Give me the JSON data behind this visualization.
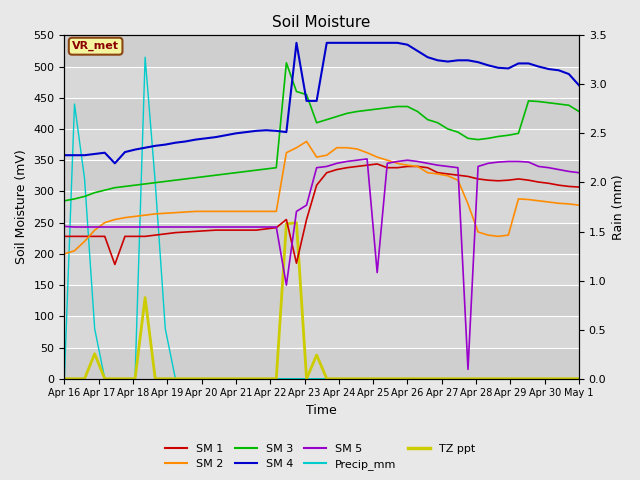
{
  "title": "Soil Moisture",
  "xlabel": "Time",
  "ylabel_left": "Soil Moisture (mV)",
  "ylabel_right": "Rain (mm)",
  "ylim_left": [
    0,
    550
  ],
  "ylim_right": [
    0,
    3.5
  ],
  "background_color": "#e8e8e8",
  "plot_bg_color": "#d8d8d8",
  "annotation_text": "VR_met",
  "annotation_color": "#8b0000",
  "annotation_bg": "#f5f5a0",
  "annotation_border": "#8b4513",
  "x_ticks": [
    "Apr 16",
    "Apr 17",
    "Apr 18",
    "Apr 19",
    "Apr 20",
    "Apr 21",
    "Apr 22",
    "Apr 23",
    "Apr 24",
    "Apr 25",
    "Apr 26",
    "Apr 27",
    "Apr 28",
    "Apr 29",
    "Apr 30",
    "May 1"
  ],
  "colors": {
    "SM1": "#cc0000",
    "SM2": "#ff8c00",
    "SM3": "#00bb00",
    "SM4": "#0000cc",
    "SM5": "#9900cc",
    "Precip_mm": "#00cccc",
    "TZ_ppt": "#cccc00"
  },
  "sm1": [
    228,
    228,
    228,
    228,
    228,
    183,
    228,
    228,
    228,
    230,
    232,
    234,
    235,
    236,
    237,
    238,
    238,
    238,
    238,
    238,
    240,
    242,
    255,
    185,
    255,
    310,
    330,
    335,
    338,
    340,
    342,
    344,
    338,
    338,
    340,
    340,
    338,
    330,
    328,
    326,
    324,
    320,
    318,
    317,
    318,
    320,
    318,
    315,
    313,
    310,
    308,
    307
  ],
  "sm2": [
    200,
    205,
    220,
    238,
    250,
    255,
    258,
    260,
    262,
    264,
    265,
    266,
    267,
    268,
    268,
    268,
    268,
    268,
    268,
    268,
    268,
    268,
    362,
    370,
    380,
    355,
    358,
    370,
    370,
    368,
    362,
    355,
    350,
    345,
    342,
    340,
    330,
    328,
    325,
    318,
    280,
    235,
    230,
    228,
    230,
    288,
    287,
    285,
    283,
    281,
    280,
    278
  ],
  "sm3": [
    285,
    288,
    292,
    298,
    302,
    306,
    308,
    310,
    312,
    314,
    316,
    318,
    320,
    322,
    324,
    326,
    328,
    330,
    332,
    334,
    336,
    338,
    506,
    460,
    455,
    410,
    415,
    420,
    425,
    428,
    430,
    432,
    434,
    436,
    436,
    428,
    415,
    410,
    400,
    395,
    385,
    383,
    385,
    388,
    390,
    393,
    445,
    444,
    442,
    440,
    438,
    428
  ],
  "sm4": [
    358,
    358,
    358,
    360,
    362,
    345,
    363,
    367,
    370,
    373,
    375,
    378,
    380,
    383,
    385,
    387,
    390,
    393,
    395,
    397,
    398,
    397,
    395,
    538,
    445,
    445,
    538,
    538,
    538,
    538,
    538,
    538,
    538,
    538,
    535,
    525,
    515,
    510,
    508,
    510,
    510,
    507,
    502,
    498,
    497,
    505,
    505,
    500,
    496,
    494,
    488,
    470
  ],
  "sm5": [
    244,
    243,
    243,
    243,
    243,
    243,
    243,
    243,
    243,
    243,
    243,
    243,
    243,
    243,
    243,
    243,
    243,
    243,
    243,
    243,
    243,
    243,
    150,
    268,
    278,
    338,
    340,
    345,
    348,
    350,
    352,
    170,
    345,
    348,
    350,
    348,
    345,
    342,
    340,
    338,
    15,
    340,
    345,
    347,
    348,
    348,
    347,
    340,
    338,
    335,
    332,
    330
  ],
  "precip_left": [
    0,
    440,
    320,
    80,
    0,
    0,
    0,
    0,
    515,
    315,
    80,
    0,
    0,
    0,
    0,
    0,
    0,
    0,
    0,
    0,
    0,
    0,
    0,
    0,
    0,
    0,
    0,
    0,
    0,
    0,
    0,
    0,
    0,
    0,
    0,
    0,
    0,
    0,
    0,
    0,
    0,
    0,
    0,
    0,
    0,
    0,
    0,
    0,
    0,
    0,
    0,
    0
  ],
  "tz_ppt_left": [
    0,
    0,
    0,
    40,
    0,
    0,
    0,
    0,
    130,
    0,
    0,
    0,
    0,
    0,
    0,
    0,
    0,
    0,
    0,
    0,
    0,
    0,
    248,
    250,
    0,
    38,
    0,
    0,
    0,
    0,
    0,
    0,
    0,
    0,
    0,
    0,
    0,
    0,
    0,
    0,
    0,
    0,
    0,
    0,
    0,
    0,
    0,
    0,
    0,
    0,
    0,
    0
  ],
  "n_points": 52
}
